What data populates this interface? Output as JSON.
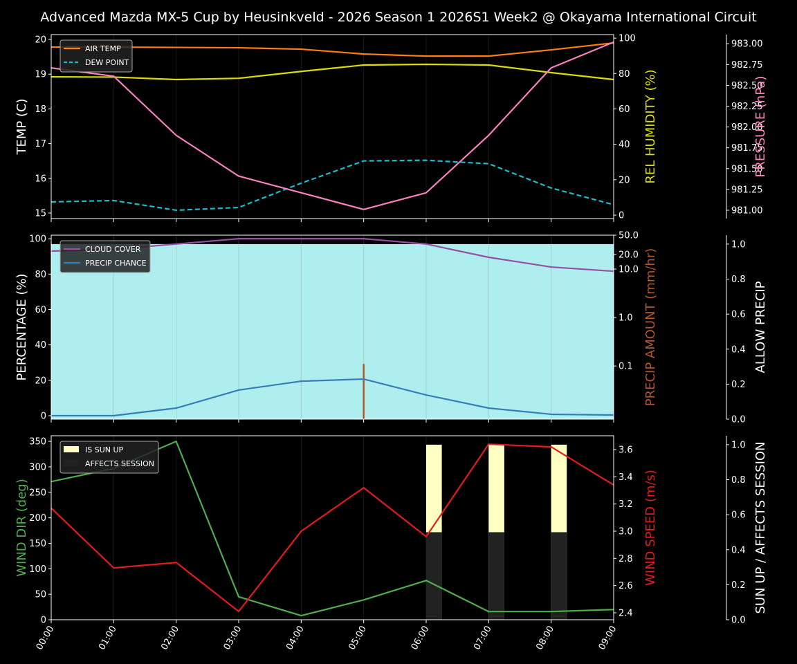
{
  "title": "Advanced Mazda MX-5 Cup by Heusinkveld - 2026 Season 1 2026S1 Week2 @ Okayama International Circuit",
  "chart_data": [
    {
      "type": "line",
      "x": [
        "00:00",
        "01:00",
        "02:00",
        "03:00",
        "04:00",
        "05:00",
        "06:00",
        "07:00",
        "08:00",
        "09:00"
      ],
      "axes": {
        "left": {
          "label": "TEMP (C)",
          "ylim": [
            14.84,
            20.14
          ],
          "ticks": [
            15,
            16,
            17,
            18,
            19,
            20
          ],
          "color": "#ffffff"
        },
        "right": {
          "label": "REL HUMIDITY (%)",
          "ylim": [
            -1.95,
            102
          ],
          "ticks": [
            0,
            20,
            40,
            60,
            80,
            100
          ],
          "color": "#e0e000"
        },
        "right2": {
          "label": "PRESSURE (hPa)",
          "ylim": [
            980.9,
            983.11
          ],
          "ticks": [
            981.0,
            981.25,
            981.5,
            981.75,
            982.0,
            982.25,
            982.5,
            982.75,
            983.0
          ],
          "color": "#ff88c0"
        }
      },
      "series": [
        {
          "name": "AIR TEMP",
          "axis": "left",
          "color": "#ff7f0e",
          "dash": false,
          "legend": true,
          "values": [
            19.78,
            19.78,
            19.77,
            19.76,
            19.72,
            19.58,
            19.52,
            19.52,
            19.7,
            19.9
          ]
        },
        {
          "name": "DEW POINT",
          "axis": "left",
          "color": "#17becf",
          "dash": true,
          "legend": true,
          "values": [
            15.32,
            15.36,
            15.08,
            15.16,
            15.86,
            16.5,
            16.52,
            16.42,
            15.72,
            15.24
          ]
        },
        {
          "axis": "right",
          "color": "#dddd00",
          "dash": false,
          "legend": false,
          "values": [
            78.1,
            78.0,
            76.6,
            77.3,
            81.2,
            84.8,
            85.2,
            84.8,
            80.5,
            76.6
          ]
        },
        {
          "axis": "right2",
          "color": "#f781bf",
          "dash": false,
          "legend": false,
          "values": [
            982.71,
            982.61,
            981.9,
            981.41,
            981.21,
            981.01,
            981.21,
            981.9,
            982.71,
            983.02
          ]
        }
      ],
      "grid": "vertical",
      "legend_placement": "upper-left"
    },
    {
      "type": "line",
      "x": [
        "00:00",
        "01:00",
        "02:00",
        "03:00",
        "04:00",
        "05:00",
        "06:00",
        "07:00",
        "08:00",
        "09:00"
      ],
      "axes": {
        "left": {
          "label": "PERCENTAGE (%)",
          "ylim": [
            -1.95,
            102
          ],
          "ticks": [
            0,
            20,
            40,
            60,
            80,
            100
          ],
          "color": "#ffffff"
        },
        "right": {
          "label": "PRECIP AMOUNT (mm/hr)",
          "scale": "log",
          "ylim": [
            0.008,
            50
          ],
          "ticks": [
            0.1,
            1.0,
            10.0,
            20.0,
            50.0
          ],
          "tick_labels": [
            "0.1",
            "1.0",
            "10.0",
            "20.0",
            "50.0"
          ],
          "color": "#b5562a"
        },
        "right2": {
          "label": "ALLOW PRECIP",
          "ylim": [
            0,
            1.051
          ],
          "ticks": [
            0.0,
            0.2,
            0.4,
            0.6,
            0.8,
            1.0
          ],
          "color": "#ffffff"
        }
      },
      "allow_precip": {
        "axis": "right2",
        "color": "#afeeee",
        "values": [
          1,
          1,
          1,
          1,
          1,
          1,
          1,
          1,
          1,
          1
        ]
      },
      "precip_amount": {
        "axis": "right",
        "color": "#b5562a",
        "values": [
          0,
          0,
          0,
          0,
          0,
          0.11,
          0,
          0,
          0,
          0
        ]
      },
      "series": [
        {
          "name": "CLOUD COVER",
          "axis": "left",
          "color": "#984ea3",
          "values": [
            93,
            94,
            97,
            100,
            100,
            100,
            97,
            89.5,
            84,
            81.6
          ]
        },
        {
          "name": "PRECIP CHANCE",
          "axis": "left",
          "color": "#377eb8",
          "values": [
            0,
            0,
            4.3,
            14.5,
            19.5,
            20.7,
            11.7,
            4.3,
            0.8,
            0.4
          ]
        }
      ],
      "grid": "vertical",
      "legend_placement": "upper-left"
    },
    {
      "type": "line",
      "x": [
        "00:00",
        "01:00",
        "02:00",
        "03:00",
        "04:00",
        "05:00",
        "06:00",
        "07:00",
        "08:00",
        "09:00"
      ],
      "axes": {
        "left": {
          "label": "WIND DIR (deg)",
          "ylim": [
            0,
            361
          ],
          "ticks": [
            0,
            50,
            100,
            150,
            200,
            250,
            300,
            350
          ],
          "color": "#4daf4a"
        },
        "right": {
          "label": "WIND SPEED (m/s)",
          "ylim": [
            2.349,
            3.702
          ],
          "ticks": [
            2.4,
            2.6,
            2.8,
            3.0,
            3.2,
            3.4,
            3.6
          ],
          "tick_labels": [
            "2.4",
            "2.6",
            "2.8",
            "3.0",
            "3.2",
            "3.4",
            "3.6"
          ],
          "color": "#e41a1c"
        },
        "right2": {
          "label": "SUN UP / AFFECTS SESSION",
          "ylim": [
            0,
            1.051
          ],
          "ticks": [
            0.0,
            0.2,
            0.4,
            0.6,
            0.8,
            1.0
          ],
          "color": "#ffffff"
        }
      },
      "bars": [
        {
          "name": "IS SUN UP",
          "axis": "right2",
          "color": "#ffffc4",
          "values": [
            0,
            0,
            0,
            0,
            0,
            0,
            1,
            1,
            1,
            0
          ]
        },
        {
          "name": "AFFECTS SESSION",
          "axis": "right2",
          "color": "#222222",
          "values": [
            0,
            0,
            0,
            0,
            0,
            0,
            0.5,
            0.5,
            0.5,
            0
          ]
        }
      ],
      "series": [
        {
          "axis": "left",
          "color": "#4daf4a",
          "values": [
            271,
            297,
            350,
            45,
            8,
            39,
            77,
            16,
            16,
            20
          ]
        },
        {
          "axis": "right",
          "color": "#e41a1c",
          "values": [
            3.17,
            2.73,
            2.77,
            2.41,
            3.0,
            3.32,
            2.96,
            3.64,
            3.62,
            3.34
          ]
        }
      ],
      "grid": "vertical",
      "legend_placement": "upper-left"
    }
  ]
}
